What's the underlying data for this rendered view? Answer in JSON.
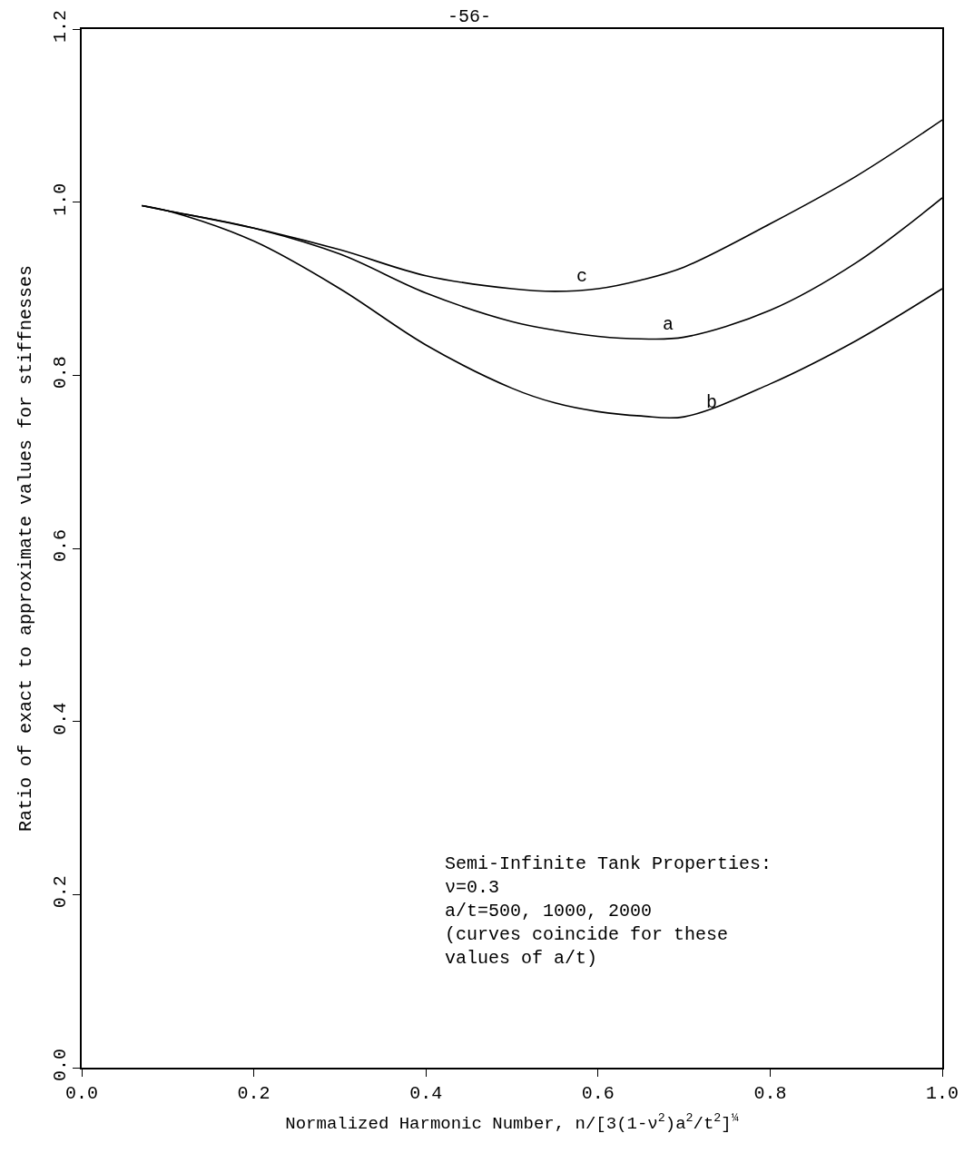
{
  "chart_data": {
    "type": "line",
    "xlabel": "Normalized Harmonic Number, n/[3(1-ν$^{2}$)a$^{2}$/t$^{2}$]$^{¼}$",
    "ylabel": "Ratio of exact to approximate values for stiffnesses",
    "x": [
      0.07,
      0.1,
      0.2,
      0.3,
      0.4,
      0.5,
      0.55,
      0.6,
      0.65,
      0.7,
      0.8,
      0.9,
      1.0
    ],
    "series": [
      {
        "name": "c",
        "color": "#000000",
        "values": [
          0.996,
          0.99,
          0.97,
          0.945,
          0.915,
          0.9,
          0.897,
          0.9,
          0.91,
          0.925,
          0.975,
          1.03,
          1.095
        ]
      },
      {
        "name": "a",
        "color": "#000000",
        "values": [
          0.996,
          0.99,
          0.97,
          0.94,
          0.895,
          0.862,
          0.852,
          0.845,
          0.842,
          0.844,
          0.875,
          0.93,
          1.005
        ]
      },
      {
        "name": "b",
        "color": "#000000",
        "values": [
          0.996,
          0.99,
          0.955,
          0.9,
          0.835,
          0.785,
          0.768,
          0.758,
          0.753,
          0.752,
          0.79,
          0.84,
          0.9
        ]
      }
    ],
    "xlim": [
      0.0,
      1.0
    ],
    "xticks": [
      {
        "value": 0.0,
        "label": "0.0"
      },
      0.2,
      0.4,
      0.6,
      0.8,
      {
        "value": 1.0,
        "label": "1.0"
      }
    ],
    "ylim": [
      0.0,
      1.2
    ],
    "yticks": [
      {
        "value": 0.0,
        "label": "0.0"
      },
      0.2,
      0.4,
      0.6,
      0.8,
      {
        "value": 1.0,
        "label": "1.0"
      },
      1.2
    ],
    "legend": false,
    "marker": "none",
    "line_style": "solid",
    "annotations": [
      "-56-",
      "Semi-Infinite Tank Properties:\nν=0.3\na/t=500, 1000, 2000\n(curves coincide for these\nvalues of a/t)"
    ]
  }
}
